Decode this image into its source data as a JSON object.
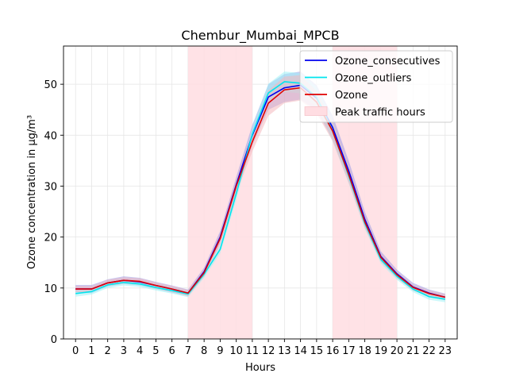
{
  "chart_data": {
    "type": "line",
    "title": "Chembur_Mumbai_MPCB",
    "xlabel": "Hours",
    "ylabel": "Ozone concentration in µg/m³",
    "xlim": [
      -0.75,
      23.75
    ],
    "ylim": [
      0,
      57.5
    ],
    "x": [
      0,
      1,
      2,
      3,
      4,
      5,
      6,
      7,
      8,
      9,
      10,
      11,
      12,
      13,
      14,
      15,
      16,
      17,
      18,
      19,
      20,
      21,
      22,
      23
    ],
    "xticks": [
      "0",
      "1",
      "2",
      "3",
      "4",
      "5",
      "6",
      "7",
      "8",
      "9",
      "10",
      "11",
      "12",
      "13",
      "14",
      "15",
      "16",
      "17",
      "18",
      "19",
      "20",
      "21",
      "22",
      "23"
    ],
    "yticks": [
      0,
      10,
      20,
      30,
      40,
      50
    ],
    "yticklabels": [
      "0",
      "10",
      "20",
      "30",
      "40",
      "50"
    ],
    "grid": true,
    "legend_position": "top-right",
    "shaded_regions": [
      {
        "name": "Peak traffic hours",
        "x_start": 7,
        "x_end": 11,
        "color": "#ffdde2"
      },
      {
        "name": "Peak traffic hours",
        "x_start": 16,
        "x_end": 20,
        "color": "#ffdde2"
      }
    ],
    "series": [
      {
        "name": "Ozone_consecutives",
        "color": "#0000ee",
        "band_color": "#9a9ae6",
        "values": [
          9.8,
          9.8,
          11.0,
          11.5,
          11.2,
          10.5,
          9.8,
          9.0,
          13.2,
          20.0,
          30.3,
          40.0,
          47.5,
          49.3,
          49.8,
          47.3,
          41.5,
          33.0,
          23.5,
          16.2,
          12.8,
          10.2,
          9.0,
          8.2
        ],
        "lower": [
          9.0,
          9.0,
          10.3,
          10.8,
          10.5,
          9.8,
          9.1,
          8.4,
          12.3,
          18.7,
          28.8,
          38.0,
          45.0,
          46.5,
          47.0,
          44.8,
          39.2,
          31.0,
          22.0,
          15.2,
          12.0,
          9.5,
          8.3,
          7.6
        ],
        "upper": [
          10.6,
          10.6,
          11.7,
          12.3,
          12.0,
          11.2,
          10.5,
          9.7,
          14.0,
          21.2,
          31.8,
          42.0,
          50.0,
          52.0,
          52.5,
          49.8,
          43.8,
          35.0,
          25.0,
          17.2,
          13.6,
          11.0,
          9.7,
          8.9
        ]
      },
      {
        "name": "Ozone_outliers",
        "color": "#00e5ee",
        "band_color": "#a0f2f5",
        "values": [
          8.9,
          9.3,
          10.6,
          11.1,
          10.8,
          10.1,
          9.5,
          8.8,
          12.7,
          17.6,
          28.5,
          40.2,
          48.3,
          50.5,
          50.2,
          47.5,
          40.8,
          32.0,
          22.7,
          15.6,
          12.3,
          9.8,
          8.3,
          7.8
        ],
        "lower": [
          8.3,
          8.7,
          10.0,
          10.5,
          10.2,
          9.5,
          8.9,
          8.2,
          12.0,
          16.8,
          27.3,
          38.8,
          46.5,
          48.5,
          48.2,
          45.5,
          38.8,
          30.5,
          21.6,
          14.8,
          11.6,
          9.2,
          7.7,
          7.2
        ],
        "upper": [
          9.5,
          9.9,
          11.2,
          11.7,
          11.4,
          10.7,
          10.1,
          9.4,
          13.4,
          18.4,
          29.7,
          41.6,
          50.1,
          52.5,
          52.2,
          49.5,
          42.8,
          33.5,
          23.8,
          16.4,
          13.0,
          10.4,
          8.9,
          8.4
        ]
      },
      {
        "name": "Ozone",
        "color": "#e00000",
        "band_color": "#f4b8be",
        "values": [
          9.8,
          9.8,
          11.0,
          11.5,
          11.3,
          10.5,
          9.8,
          9.0,
          13.0,
          19.7,
          30.0,
          38.7,
          46.3,
          48.9,
          49.3,
          46.5,
          40.8,
          32.3,
          23.0,
          16.0,
          12.6,
          10.1,
          8.9,
          8.2
        ],
        "lower": [
          9.2,
          9.2,
          10.4,
          10.9,
          10.7,
          9.9,
          9.2,
          8.4,
          12.3,
          18.6,
          28.6,
          36.8,
          43.8,
          46.3,
          46.8,
          44.3,
          38.8,
          30.6,
          21.8,
          15.2,
          11.9,
          9.5,
          8.3,
          7.6
        ],
        "upper": [
          10.4,
          10.4,
          11.6,
          12.1,
          11.9,
          11.1,
          10.4,
          9.6,
          13.7,
          20.8,
          31.4,
          40.6,
          48.8,
          51.5,
          51.8,
          48.7,
          42.8,
          34.0,
          24.2,
          16.8,
          13.3,
          10.7,
          9.5,
          8.8
        ]
      }
    ],
    "legend": [
      {
        "label": "Ozone_consecutives",
        "kind": "line",
        "color": "#0000ee"
      },
      {
        "label": "Ozone_outliers",
        "kind": "line",
        "color": "#00e5ee"
      },
      {
        "label": "Ozone",
        "kind": "line",
        "color": "#e00000"
      },
      {
        "label": "Peak traffic hours",
        "kind": "patch",
        "color": "#ffdde2"
      }
    ]
  }
}
